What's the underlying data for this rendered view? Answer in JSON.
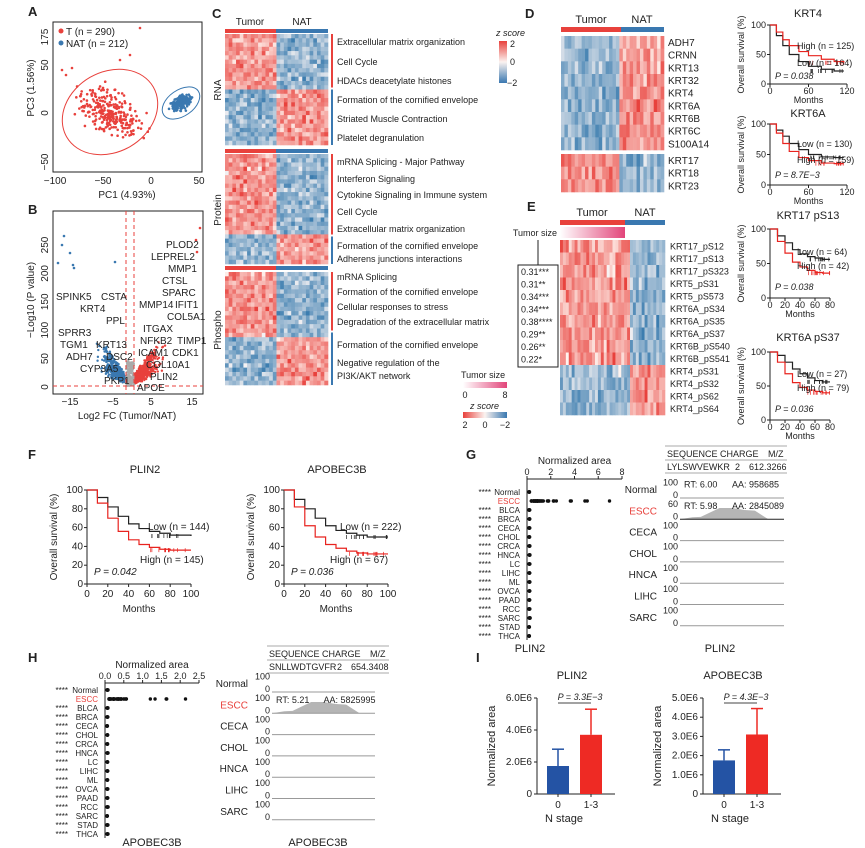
{
  "colors": {
    "tumor": "#e8413c",
    "nat": "#3a78b0",
    "high": "#e8231f",
    "low": "#222222",
    "bar_n0": "#2453a4",
    "bar_n13": "#ee2a24",
    "peak": "#b5b5b5"
  },
  "panel_labels": [
    "A",
    "B",
    "C",
    "D",
    "E",
    "F",
    "G",
    "H",
    "I"
  ],
  "A": {
    "legend": [
      {
        "label": "T (n = 290)",
        "color": "#e8413c"
      },
      {
        "label": "NAT (n = 212)",
        "color": "#3a78b0"
      }
    ],
    "xlabel": "PC1 (4.93%)",
    "ylabel": "PC3 (1.56%)",
    "xticks": [
      "−100",
      "−50",
      "0",
      "50"
    ],
    "yticks": [
      "175",
      "50",
      "0",
      "−50"
    ]
  },
  "B": {
    "xlabel": "Log2 FC (Tumor/NAT)",
    "ylabel": "−Log10 (P value)",
    "xticks": [
      "−15",
      "−5",
      "5",
      "15"
    ],
    "yticks": [
      "0",
      "50",
      "100",
      "150",
      "200",
      "250"
    ],
    "down_genes": [
      "SPINK5",
      "CSTA",
      "KRT4",
      "PPL",
      "SPRR3",
      "KRT13",
      "TGM1",
      "DSC2",
      "ADH7",
      "CYP3A5",
      "PKP1"
    ],
    "up_genes": [
      "PLOD2",
      "LEPREL2",
      "MMP1",
      "CTSL",
      "SPARC",
      "MMP14",
      "IFIT1",
      "COL5A1",
      "ITGAX",
      "NFKB2",
      "TIMP1",
      "CDK1",
      "ICAM1",
      "COL10A1",
      "PLIN2",
      "APOE"
    ]
  },
  "C": {
    "tumor": "Tumor",
    "nat": "NAT",
    "blocks": [
      {
        "name": "RNA",
        "up": [
          "Extracellular matrix organization",
          "Cell Cycle",
          "HDACs deacetylate histones"
        ],
        "down": [
          "Formation of the cornified envelope",
          "Striated Muscle Contraction",
          "Platelet degranulation"
        ]
      },
      {
        "name": "Protein",
        "up": [
          "mRNA Splicing - Major Pathway",
          "Interferon Signaling",
          "Cytokine Signaling in Immune system",
          "Cell Cycle",
          "Extracellular matrix organization"
        ],
        "down": [
          "Formation of the cornified envelope",
          "Adherens junctions interactions"
        ]
      },
      {
        "name": "Phospho",
        "up": [
          "mRNA Splicing",
          "Formation of the cornified envelope",
          "Cellular responses to stress",
          "Degradation of the extracellular matrix"
        ],
        "down": [
          "Formation of the cornified envelope",
          "Negative regulation of the",
          "PI3K/AKT network"
        ]
      }
    ],
    "zscore_legend": {
      "title": "z score",
      "ticks": [
        "2",
        "0",
        "−2"
      ]
    },
    "tumor_size_legend": {
      "title": "Tumor size",
      "ticks": [
        "0",
        "8"
      ]
    },
    "zscore_legend2": {
      "title": "z score",
      "ticks": [
        "2",
        "0",
        "−2"
      ]
    }
  },
  "D": {
    "tumor": "Tumor",
    "nat": "NAT",
    "genes_top": [
      "ADH7",
      "CRNN",
      "KRT13",
      "KRT32",
      "KRT4",
      "KRT6A",
      "KRT6B",
      "KRT6C",
      "S100A14"
    ],
    "genes_bottom": [
      "KRT17",
      "KRT18",
      "KRT23"
    ]
  },
  "E": {
    "tumor": "Tumor",
    "nat": "NAT",
    "tumor_size": "Tumor size",
    "sites": [
      "KRT17_pS12",
      "KRT17_pS13",
      "KRT17_pS323",
      "KRT5_pS31",
      "KRT5_pS573",
      "KRT6A_pS34",
      "KRT6A_pS35",
      "KRT6A_pS37",
      "KRT6B_pS540",
      "KRT6B_pS541",
      "KRT4_pS31",
      "KRT4_pS32",
      "KRT4_pS62",
      "KRT4_pS64"
    ],
    "correlations": [
      "0.31***",
      "0.31**",
      "0.34***",
      "0.34***",
      "0.38****",
      "0.29**",
      "0.26**",
      "0.22*"
    ]
  },
  "km_common": {
    "ylabel": "Overall survival (%)",
    "xlabel": "Months"
  },
  "km": [
    {
      "id": "KRT4",
      "title": "KRT4",
      "xticks": [
        "0",
        "60",
        "120"
      ],
      "xmax": 120,
      "yticks": [
        "0",
        "50",
        "100"
      ],
      "p": "P = 0.038",
      "high": {
        "label": "High (n = 125)",
        "pts": [
          [
            0,
            100
          ],
          [
            10,
            88
          ],
          [
            20,
            75
          ],
          [
            30,
            65
          ],
          [
            45,
            55
          ],
          [
            60,
            48
          ],
          [
            80,
            42
          ],
          [
            100,
            38
          ],
          [
            115,
            36
          ]
        ]
      },
      "low": {
        "label": "Low (n = 164)",
        "pts": [
          [
            0,
            100
          ],
          [
            10,
            82
          ],
          [
            20,
            65
          ],
          [
            30,
            50
          ],
          [
            45,
            38
          ],
          [
            60,
            30
          ],
          [
            80,
            25
          ],
          [
            100,
            22
          ],
          [
            115,
            22
          ]
        ]
      }
    },
    {
      "id": "KRT6A",
      "title": "KRT6A",
      "xticks": [
        "0",
        "60",
        "120"
      ],
      "xmax": 120,
      "yticks": [
        "0",
        "50",
        "100"
      ],
      "p": "P = 8.7E−3",
      "high": {
        "label": "High (n = 159)",
        "pts": [
          [
            0,
            100
          ],
          [
            10,
            85
          ],
          [
            20,
            68
          ],
          [
            30,
            55
          ],
          [
            45,
            45
          ],
          [
            60,
            40
          ],
          [
            80,
            36
          ],
          [
            100,
            35
          ],
          [
            115,
            35
          ]
        ]
      },
      "low": {
        "label": "Low (n = 130)",
        "pts": [
          [
            0,
            100
          ],
          [
            10,
            90
          ],
          [
            20,
            80
          ],
          [
            30,
            68
          ],
          [
            45,
            58
          ],
          [
            60,
            50
          ],
          [
            80,
            46
          ],
          [
            100,
            45
          ],
          [
            115,
            45
          ]
        ]
      }
    },
    {
      "id": "KRT17pS13",
      "title": "KRT17 pS13",
      "xticks": [
        "0",
        "20",
        "40",
        "60",
        "80"
      ],
      "xmax": 80,
      "yticks": [
        "0",
        "50",
        "100"
      ],
      "p": "P = 0.038",
      "low": {
        "label": "Low (n = 64)",
        "pts": [
          [
            0,
            100
          ],
          [
            10,
            90
          ],
          [
            20,
            80
          ],
          [
            30,
            70
          ],
          [
            40,
            64
          ],
          [
            50,
            60
          ],
          [
            60,
            58
          ],
          [
            70,
            56
          ],
          [
            80,
            56
          ]
        ]
      },
      "high": {
        "label": "High (n = 42)",
        "pts": [
          [
            0,
            100
          ],
          [
            10,
            82
          ],
          [
            20,
            65
          ],
          [
            30,
            52
          ],
          [
            40,
            45
          ],
          [
            50,
            40
          ],
          [
            60,
            37
          ],
          [
            70,
            36
          ],
          [
            80,
            36
          ]
        ]
      }
    },
    {
      "id": "KRT6ApS37",
      "title": "KRT6A pS37",
      "xticks": [
        "0",
        "20",
        "40",
        "60",
        "80"
      ],
      "xmax": 80,
      "yticks": [
        "0",
        "50",
        "100"
      ],
      "p": "P = 0.036",
      "low": {
        "label": "Low (n = 27)",
        "pts": [
          [
            0,
            100
          ],
          [
            10,
            95
          ],
          [
            20,
            85
          ],
          [
            30,
            75
          ],
          [
            40,
            68
          ],
          [
            50,
            62
          ],
          [
            60,
            58
          ],
          [
            70,
            56
          ],
          [
            80,
            56
          ]
        ]
      },
      "high": {
        "label": "High (n = 79)",
        "pts": [
          [
            0,
            100
          ],
          [
            10,
            85
          ],
          [
            20,
            68
          ],
          [
            30,
            55
          ],
          [
            40,
            48
          ],
          [
            50,
            44
          ],
          [
            60,
            42
          ],
          [
            70,
            40
          ],
          [
            80,
            40
          ]
        ]
      }
    },
    {
      "id": "PLIN2",
      "title": "PLIN2",
      "xticks": [
        "0",
        "20",
        "40",
        "60",
        "80",
        "100"
      ],
      "xmax": 100,
      "yticks": [
        "0",
        "20",
        "40",
        "60",
        "80",
        "100"
      ],
      "p": "P = 0.042",
      "low": {
        "label": "Low (n = 144)",
        "pts": [
          [
            0,
            100
          ],
          [
            10,
            92
          ],
          [
            20,
            82
          ],
          [
            30,
            72
          ],
          [
            40,
            64
          ],
          [
            50,
            59
          ],
          [
            60,
            56
          ],
          [
            70,
            54
          ],
          [
            80,
            52
          ],
          [
            100,
            51
          ]
        ]
      },
      "high": {
        "label": "High (n = 145)",
        "pts": [
          [
            0,
            100
          ],
          [
            10,
            86
          ],
          [
            20,
            70
          ],
          [
            30,
            56
          ],
          [
            40,
            47
          ],
          [
            50,
            42
          ],
          [
            60,
            39
          ],
          [
            70,
            37
          ],
          [
            80,
            36
          ],
          [
            100,
            36
          ]
        ]
      }
    },
    {
      "id": "APOBEC3B",
      "title": "APOBEC3B",
      "xticks": [
        "0",
        "20",
        "40",
        "60",
        "80",
        "100"
      ],
      "xmax": 100,
      "yticks": [
        "0",
        "20",
        "40",
        "60",
        "80",
        "100"
      ],
      "p": "P = 0.036",
      "low": {
        "label": "Low (n = 222)",
        "pts": [
          [
            0,
            100
          ],
          [
            10,
            90
          ],
          [
            20,
            80
          ],
          [
            30,
            70
          ],
          [
            40,
            62
          ],
          [
            50,
            57
          ],
          [
            60,
            54
          ],
          [
            70,
            52
          ],
          [
            80,
            50
          ],
          [
            100,
            50
          ]
        ]
      },
      "high": {
        "label": "High (n = 67)",
        "pts": [
          [
            0,
            100
          ],
          [
            10,
            82
          ],
          [
            20,
            62
          ],
          [
            30,
            50
          ],
          [
            40,
            42
          ],
          [
            50,
            38
          ],
          [
            60,
            35
          ],
          [
            70,
            33
          ],
          [
            80,
            32
          ],
          [
            100,
            32
          ]
        ]
      }
    }
  ],
  "G": {
    "title": "Normalized area",
    "xticks": [
      "0",
      "2",
      "4",
      "6",
      "8"
    ],
    "gene": "PLIN2",
    "categories": [
      "Normal",
      "ESCC",
      "BLCA",
      "BRCA",
      "CECA",
      "CHOL",
      "CRCA",
      "HNCA",
      "LC",
      "LIHC",
      "ML",
      "OVCA",
      "PAAD",
      "RCC",
      "SARC",
      "STAD",
      "THCA"
    ],
    "stars": "****",
    "table": {
      "headers": [
        "SEQUENCE",
        "CHARGE",
        "M/Z"
      ],
      "row": [
        "LYLSWVEWKR",
        "2",
        "612.3266"
      ]
    },
    "chrom": [
      {
        "label": "Normal",
        "ymax": "100",
        "rt": "RT: 6.00",
        "aa": "AA: 958685"
      },
      {
        "label": "ESCC",
        "ymax": "60",
        "rt": "RT: 5.98",
        "aa": "AA: 2845089"
      },
      {
        "label": "CECA",
        "ymax": "100"
      },
      {
        "label": "CHOL",
        "ymax": "100"
      },
      {
        "label": "HNCA",
        "ymax": "100"
      },
      {
        "label": "LIHC",
        "ymax": "100"
      },
      {
        "label": "SARC",
        "ymax": "100"
      }
    ],
    "zero": "0"
  },
  "H": {
    "title": "Normalized area",
    "xticks": [
      "0.0",
      "0.5",
      "1.0",
      "1.5",
      "2.0",
      "2.5"
    ],
    "gene": "APOBEC3B",
    "categories": [
      "Normal",
      "ESCC",
      "BLCA",
      "BRCA",
      "CECA",
      "CHOL",
      "CRCA",
      "HNCA",
      "LC",
      "LIHC",
      "ML",
      "OVCA",
      "PAAD",
      "RCC",
      "SARC",
      "STAD",
      "THCA"
    ],
    "stars": "****",
    "table": {
      "headers": [
        "SEQUENCE",
        "CHARGE",
        "M/Z"
      ],
      "row": [
        "SNLLWDTGVFR",
        "2",
        "654.3408"
      ]
    },
    "chrom": [
      {
        "label": "Normal",
        "ymax": "100"
      },
      {
        "label": "ESCC",
        "ymax": "100",
        "rt": "RT: 5.21",
        "aa": "AA: 5825995"
      },
      {
        "label": "CECA",
        "ymax": "100"
      },
      {
        "label": "CHOL",
        "ymax": "100"
      },
      {
        "label": "HNCA",
        "ymax": "100"
      },
      {
        "label": "LIHC",
        "ymax": "100"
      },
      {
        "label": "SARC",
        "ymax": "100"
      }
    ],
    "zero": "0"
  },
  "chart_data": [
    {
      "type": "bar",
      "title": "PLIN2",
      "categories": [
        "0",
        "1-3"
      ],
      "values": [
        1750000,
        3700000
      ],
      "error_upper": [
        2800000,
        5300000
      ],
      "xlabel": "N stage",
      "ylabel": "Normalized area",
      "ylim": [
        0,
        6000000
      ],
      "yticks": [
        "0",
        "2.0E6",
        "4.0E6",
        "6.0E6"
      ],
      "p": "P = 3.3E−3"
    },
    {
      "type": "bar",
      "title": "APOBEC3B",
      "categories": [
        "0",
        "1-3"
      ],
      "values": [
        1750000,
        3100000
      ],
      "error_upper": [
        2300000,
        4450000
      ],
      "xlabel": "N stage",
      "ylabel": "Normalized area",
      "ylim": [
        0,
        5000000
      ],
      "yticks": [
        "0",
        "1.0E6",
        "2.0E6",
        "3.0E6",
        "4.0E6",
        "5.0E6"
      ],
      "p": "P = 4.3E−3"
    }
  ]
}
